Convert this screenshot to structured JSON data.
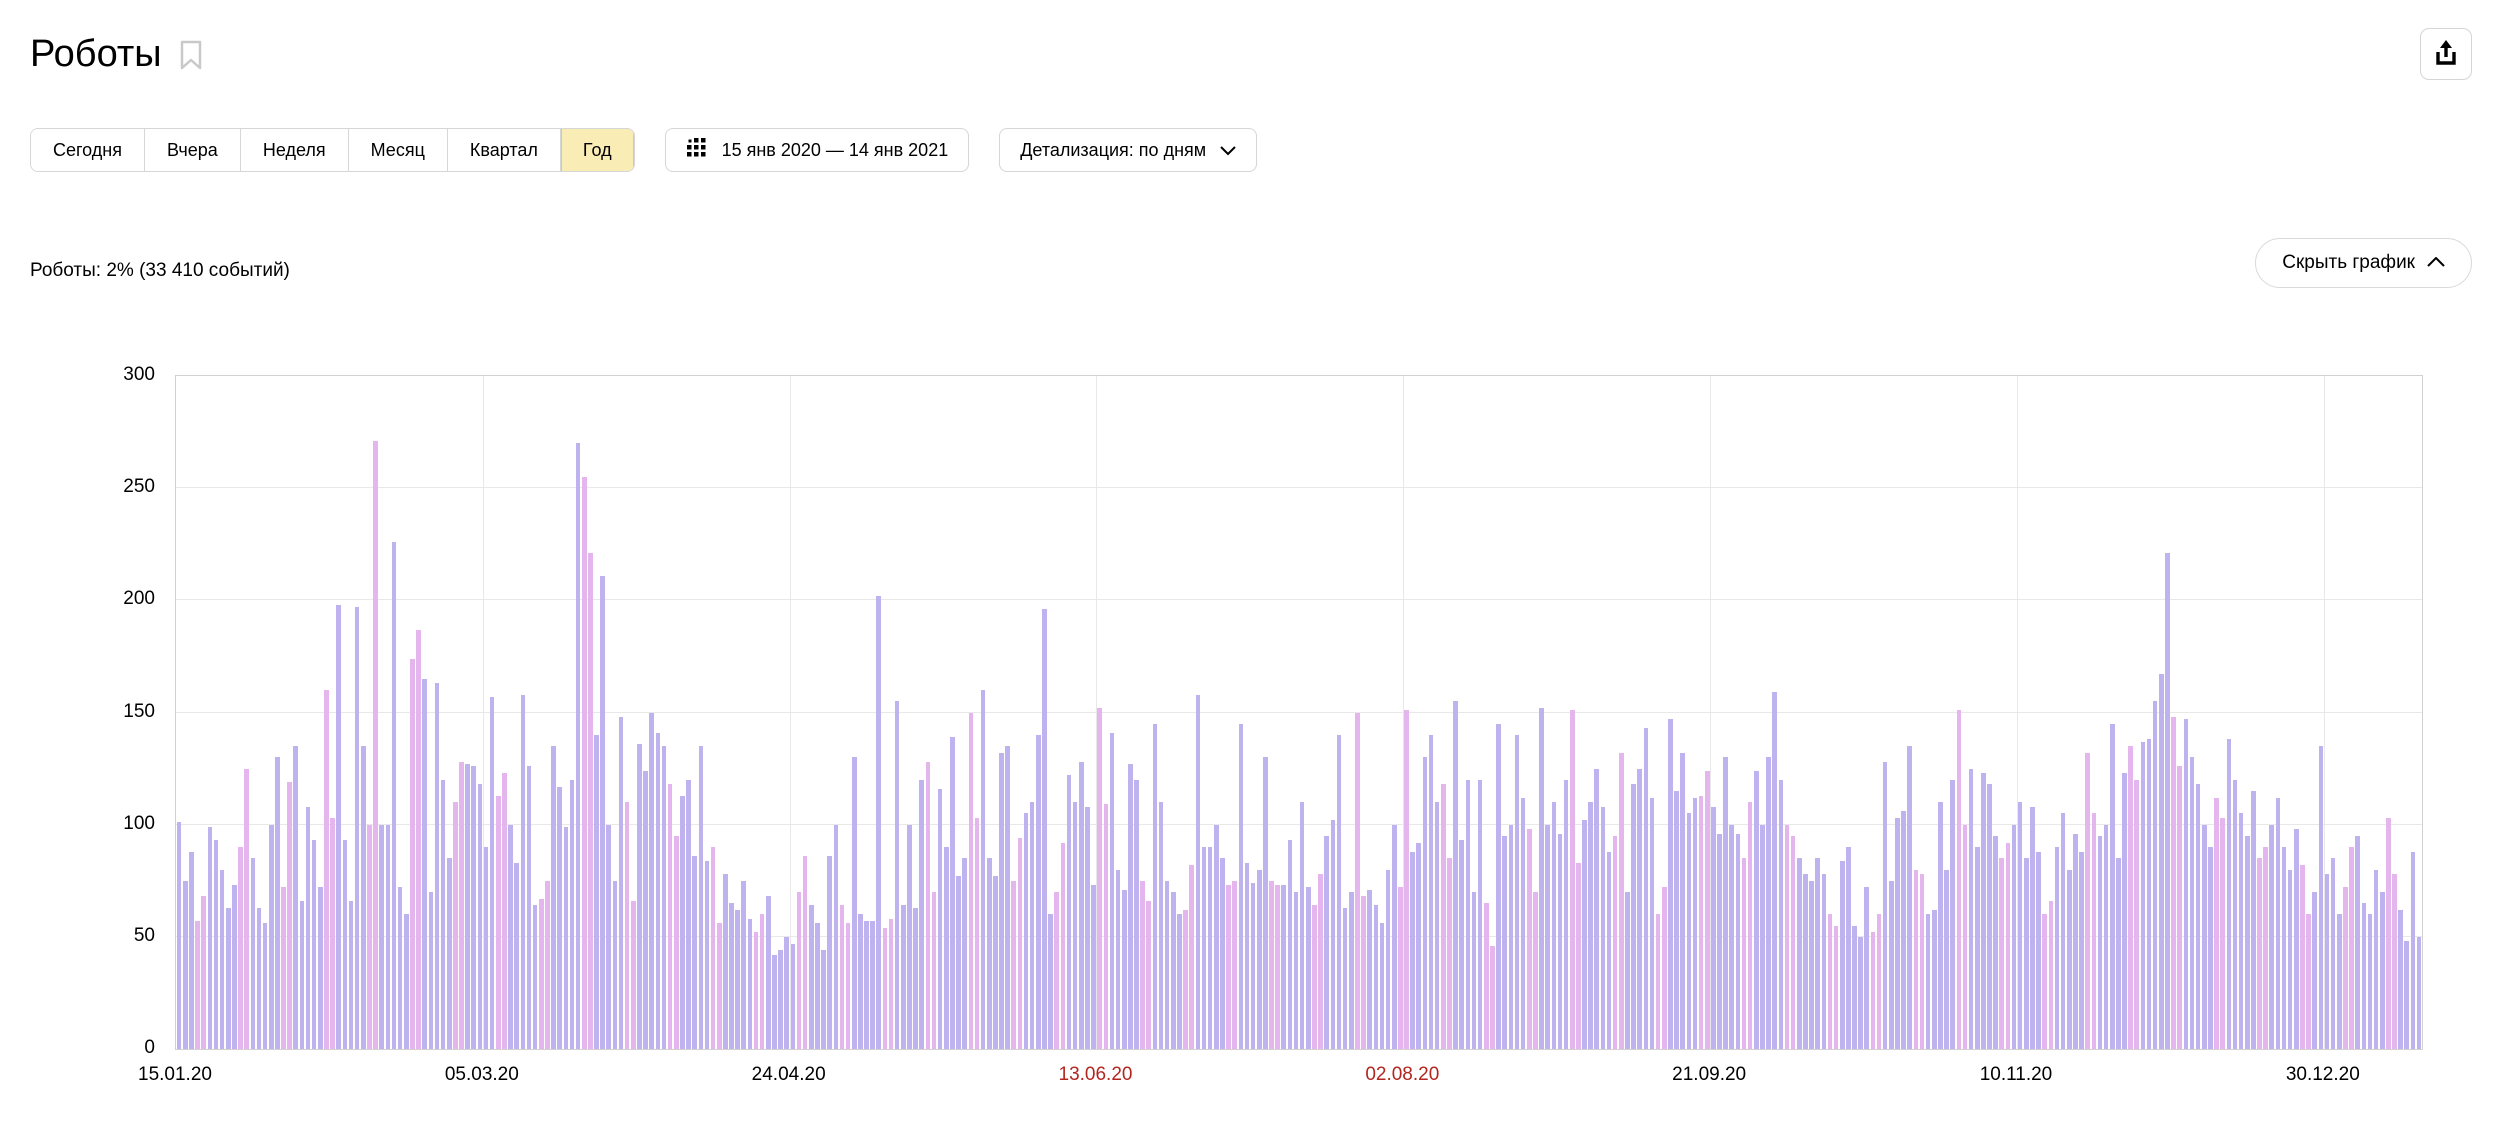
{
  "header": {
    "title": "Роботы"
  },
  "toolbar": {
    "period_buttons": [
      {
        "label": "Сегодня",
        "selected": false
      },
      {
        "label": "Вчера",
        "selected": false
      },
      {
        "label": "Неделя",
        "selected": false
      },
      {
        "label": "Месяц",
        "selected": false
      },
      {
        "label": "Квартал",
        "selected": false
      },
      {
        "label": "Год",
        "selected": true
      }
    ],
    "date_range": "15 янв 2020 — 14 янв 2021",
    "detail_label": "Детализация: по дням"
  },
  "summary": {
    "text": "Роботы: 2% (33 410 событий)"
  },
  "hide_chart": {
    "label": "Скрыть график"
  },
  "colors": {
    "weekday_bar": "#beb3ee",
    "weekend_bar": "#e5b5ee",
    "red_label": "#b3261f",
    "selected_period_bg": "#f9ecb5",
    "grid": "#e8e8e8"
  },
  "chart_data": {
    "type": "bar",
    "title": "Роботы: 2% (33 410 событий)",
    "xlabel": "",
    "ylabel": "",
    "ylim": [
      0,
      300
    ],
    "y_ticks": [
      0,
      50,
      100,
      150,
      200,
      250,
      300
    ],
    "grid": true,
    "start_date": "15.01.2020",
    "end_date": "14.01.2021",
    "x_ticks": [
      {
        "day": 0,
        "label": "15.01.20",
        "red": false
      },
      {
        "day": 50,
        "label": "05.03.20",
        "red": false
      },
      {
        "day": 100,
        "label": "24.04.20",
        "red": false
      },
      {
        "day": 150,
        "label": "13.06.20",
        "red": true
      },
      {
        "day": 200,
        "label": "02.08.20",
        "red": true
      },
      {
        "day": 250,
        "label": "21.09.20",
        "red": false
      },
      {
        "day": 300,
        "label": "10.11.20",
        "red": false
      },
      {
        "day": 350,
        "label": "30.12.20",
        "red": false
      }
    ],
    "weekend_rule": "first day 15.01.2020 is Wednesday; bars with index mod 7 in {3,4} are weekend (pink)",
    "values": [
      101,
      75,
      88,
      57,
      68,
      99,
      93,
      80,
      63,
      73,
      90,
      125,
      85,
      63,
      56,
      100,
      130,
      72,
      119,
      135,
      66,
      108,
      93,
      72,
      160,
      103,
      198,
      93,
      66,
      197,
      135,
      100,
      271,
      100,
      100,
      226,
      72,
      60,
      174,
      187,
      165,
      70,
      163,
      120,
      85,
      110,
      128,
      127,
      126,
      118,
      90,
      157,
      113,
      123,
      100,
      83,
      158,
      126,
      64,
      67,
      75,
      135,
      117,
      99,
      120,
      270,
      255,
      221,
      140,
      211,
      100,
      75,
      148,
      110,
      66,
      136,
      124,
      150,
      141,
      135,
      118,
      95,
      113,
      120,
      86,
      135,
      84,
      90,
      56,
      78,
      65,
      62,
      75,
      58,
      52,
      60,
      68,
      42,
      44,
      50,
      47,
      70,
      86,
      64,
      56,
      44,
      86,
      100,
      64,
      56,
      130,
      60,
      57,
      57,
      202,
      54,
      58,
      155,
      64,
      100,
      63,
      120,
      128,
      70,
      116,
      90,
      139,
      77,
      85,
      150,
      103,
      160,
      85,
      77,
      132,
      135,
      75,
      94,
      105,
      110,
      140,
      196,
      60,
      70,
      92,
      122,
      110,
      128,
      108,
      73,
      152,
      109,
      141,
      80,
      71,
      127,
      120,
      75,
      66,
      145,
      110,
      75,
      70,
      60,
      62,
      82,
      158,
      90,
      90,
      100,
      85,
      73,
      75,
      145,
      83,
      74,
      80,
      130,
      75,
      73,
      73,
      93,
      70,
      110,
      72,
      64,
      78,
      95,
      102,
      140,
      63,
      70,
      150,
      68,
      71,
      64,
      56,
      80,
      100,
      72,
      151,
      88,
      92,
      130,
      140,
      110,
      118,
      85,
      155,
      93,
      120,
      70,
      120,
      65,
      46,
      145,
      95,
      100,
      140,
      112,
      98,
      70,
      152,
      100,
      110,
      96,
      120,
      151,
      83,
      102,
      110,
      125,
      108,
      88,
      95,
      132,
      70,
      118,
      125,
      143,
      112,
      60,
      72,
      147,
      115,
      132,
      105,
      112,
      113,
      124,
      108,
      96,
      130,
      100,
      96,
      85,
      110,
      124,
      100,
      130,
      159,
      120,
      100,
      95,
      85,
      78,
      75,
      85,
      78,
      60,
      55,
      84,
      90,
      55,
      50,
      72,
      52,
      60,
      128,
      75,
      103,
      106,
      135,
      80,
      78,
      60,
      62,
      110,
      80,
      120,
      151,
      100,
      125,
      90,
      123,
      118,
      95,
      85,
      92,
      100,
      110,
      85,
      108,
      88,
      60,
      66,
      90,
      105,
      80,
      96,
      88,
      132,
      105,
      95,
      100,
      145,
      85,
      123,
      135,
      120,
      137,
      138,
      155,
      167,
      221,
      148,
      126,
      147,
      130,
      118,
      100,
      90,
      112,
      103,
      138,
      120,
      105,
      95,
      115,
      85,
      90,
      100,
      112,
      90,
      80,
      98,
      82,
      60,
      70,
      135,
      78,
      85,
      60,
      72,
      90,
      95,
      65,
      60,
      80,
      70,
      103,
      78,
      62,
      48,
      88,
      50
    ]
  }
}
